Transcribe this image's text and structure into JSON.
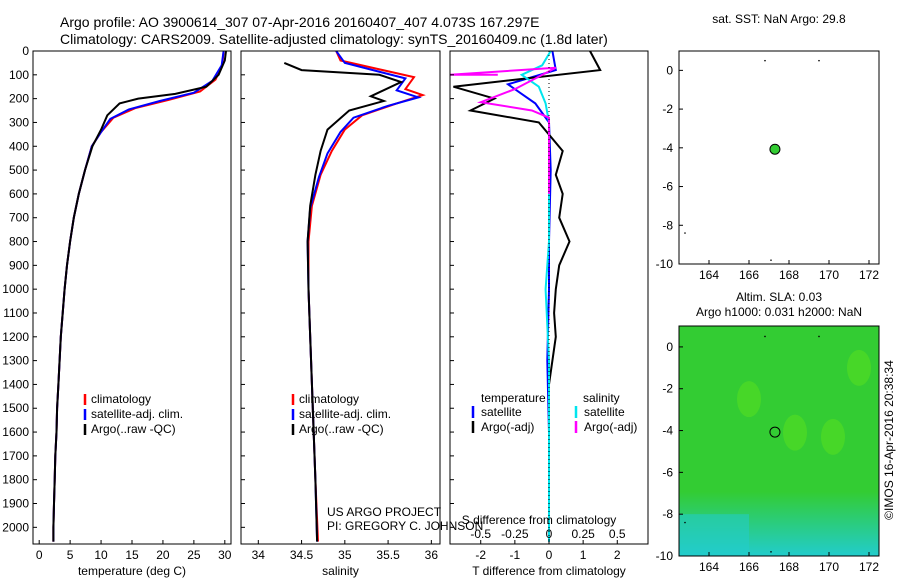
{
  "header": {
    "line1": "Argo profile: AO 3900614_307 07-Apr-2016 20160407_407 4.073S 167.297E",
    "line2": "Climatology: CARS2009. Satellite-adjusted climatology: synTS_20160409.nc (1.8d later)"
  },
  "colors": {
    "climatology": "#ff0000",
    "satellite": "#0000ff",
    "argo": "#000000",
    "salinity_satellite": "#00e5ee",
    "salinity_argo": "#ff00ff",
    "sla_map_green": "#33cc33",
    "sla_map_cyan": "#22cccc"
  },
  "chart_data": [
    {
      "type": "line",
      "panel": "temperature",
      "xlabel": "temperature (deg C)",
      "xlim": [
        -1,
        31
      ],
      "xticks": [
        0,
        5,
        10,
        15,
        20,
        25,
        30
      ],
      "ylim": [
        0,
        2070
      ],
      "yticks": [
        0,
        100,
        200,
        300,
        400,
        500,
        600,
        700,
        800,
        900,
        1000,
        1100,
        1200,
        1300,
        1400,
        1500,
        1600,
        1700,
        1800,
        1900,
        2000
      ],
      "y_reversed": true,
      "legend": [
        "climatology",
        "satellite-adj. clim.",
        "Argo(..raw -QC)"
      ],
      "series": [
        {
          "name": "climatology",
          "color": "#ff0000",
          "points": [
            [
              29.8,
              0
            ],
            [
              29.6,
              60
            ],
            [
              28.5,
              120
            ],
            [
              26,
              170
            ],
            [
              21,
              205
            ],
            [
              15.5,
              240
            ],
            [
              12,
              280
            ],
            [
              10,
              340
            ],
            [
              8.5,
              400
            ],
            [
              7.4,
              500
            ],
            [
              6.4,
              600
            ],
            [
              5.6,
              700
            ],
            [
              5,
              800
            ],
            [
              4.5,
              900
            ],
            [
              4.1,
              1000
            ],
            [
              3.8,
              1100
            ],
            [
              3.5,
              1200
            ],
            [
              3.3,
              1300
            ],
            [
              3.1,
              1400
            ],
            [
              2.9,
              1500
            ],
            [
              2.8,
              1600
            ],
            [
              2.6,
              1700
            ],
            [
              2.5,
              1800
            ],
            [
              2.4,
              1900
            ],
            [
              2.3,
              2000
            ],
            [
              2.3,
              2060
            ]
          ]
        },
        {
          "name": "satellite",
          "color": "#0000ff",
          "points": [
            [
              29.8,
              0
            ],
            [
              29.5,
              60
            ],
            [
              28,
              125
            ],
            [
              25,
              175
            ],
            [
              19.5,
              210
            ],
            [
              14.5,
              245
            ],
            [
              11.5,
              285
            ],
            [
              10,
              340
            ],
            [
              8.5,
              400
            ],
            [
              7.4,
              500
            ],
            [
              6.4,
              600
            ],
            [
              5.6,
              700
            ],
            [
              5,
              800
            ],
            [
              4.5,
              900
            ],
            [
              4.1,
              1000
            ],
            [
              3.8,
              1100
            ],
            [
              3.5,
              1200
            ],
            [
              3.3,
              1300
            ],
            [
              3.1,
              1400
            ],
            [
              2.9,
              1500
            ],
            [
              2.8,
              1600
            ],
            [
              2.6,
              1700
            ],
            [
              2.5,
              1800
            ],
            [
              2.4,
              1900
            ],
            [
              2.3,
              2000
            ],
            [
              2.3,
              2060
            ]
          ]
        },
        {
          "name": "Argo",
          "color": "#000000",
          "points": [
            [
              30.2,
              0
            ],
            [
              30,
              40
            ],
            [
              29,
              100
            ],
            [
              27,
              150
            ],
            [
              22,
              180
            ],
            [
              16,
              200
            ],
            [
              13,
              220
            ],
            [
              11,
              270
            ],
            [
              10,
              330
            ],
            [
              8.6,
              400
            ],
            [
              7.4,
              500
            ],
            [
              6.4,
              600
            ],
            [
              5.6,
              700
            ],
            [
              5,
              800
            ],
            [
              4.5,
              900
            ],
            [
              4.1,
              1000
            ],
            [
              3.8,
              1100
            ],
            [
              3.5,
              1200
            ],
            [
              3.3,
              1300
            ],
            [
              3.1,
              1400
            ],
            [
              2.9,
              1500
            ],
            [
              2.8,
              1600
            ],
            [
              2.6,
              1700
            ],
            [
              2.5,
              1800
            ],
            [
              2.4,
              1900
            ],
            [
              2.3,
              2000
            ],
            [
              2.3,
              2060
            ]
          ]
        }
      ]
    },
    {
      "type": "line",
      "panel": "salinity",
      "xlabel": "salinity",
      "xlim": [
        33.8,
        36.1
      ],
      "xticks": [
        34,
        34.5,
        35,
        35.5,
        36
      ],
      "ylim": [
        0,
        2070
      ],
      "y_reversed": true,
      "legend": [
        "climatology",
        "satellite-adj. clim.",
        "Argo(..raw -QC)"
      ],
      "annotation": [
        "US ARGO PROJECT",
        "PI: GREGORY C. JOHNSON"
      ],
      "series": [
        {
          "name": "climatology",
          "color": "#ff0000",
          "points": [
            [
              34.9,
              0
            ],
            [
              34.95,
              40
            ],
            [
              35.8,
              110
            ],
            [
              35.7,
              160
            ],
            [
              35.9,
              185
            ],
            [
              35.6,
              220
            ],
            [
              35.2,
              270
            ],
            [
              35,
              330
            ],
            [
              34.85,
              420
            ],
            [
              34.72,
              520
            ],
            [
              34.62,
              650
            ],
            [
              34.58,
              800
            ],
            [
              34.58,
              1000
            ],
            [
              34.6,
              1200
            ],
            [
              34.63,
              1500
            ],
            [
              34.66,
              1800
            ],
            [
              34.69,
              2060
            ]
          ]
        },
        {
          "name": "satellite",
          "color": "#0000ff",
          "points": [
            [
              34.9,
              0
            ],
            [
              35,
              50
            ],
            [
              35.7,
              115
            ],
            [
              35.6,
              165
            ],
            [
              35.85,
              195
            ],
            [
              35.5,
              230
            ],
            [
              35.1,
              280
            ],
            [
              34.95,
              340
            ],
            [
              34.8,
              430
            ],
            [
              34.7,
              530
            ],
            [
              34.6,
              660
            ],
            [
              34.57,
              800
            ],
            [
              34.58,
              1000
            ],
            [
              34.6,
              1200
            ],
            [
              34.63,
              1500
            ],
            [
              34.66,
              1800
            ],
            [
              34.68,
              2060
            ]
          ]
        },
        {
          "name": "Argo",
          "color": "#000000",
          "points": [
            [
              34.3,
              50
            ],
            [
              34.5,
              80
            ],
            [
              35.4,
              100
            ],
            [
              35.65,
              130
            ],
            [
              35.3,
              190
            ],
            [
              35.45,
              210
            ],
            [
              35.05,
              250
            ],
            [
              34.8,
              330
            ],
            [
              34.72,
              420
            ],
            [
              34.66,
              520
            ],
            [
              34.6,
              650
            ],
            [
              34.57,
              800
            ],
            [
              34.58,
              1000
            ],
            [
              34.6,
              1200
            ],
            [
              34.63,
              1500
            ],
            [
              34.66,
              1800
            ],
            [
              34.68,
              2060
            ]
          ]
        }
      ]
    },
    {
      "type": "line",
      "panel": "difference",
      "xlabel_top": "S difference from climatology",
      "xlabel": "T difference from climatology",
      "xlim": [
        -2.9,
        2.9
      ],
      "xticks": [
        -2,
        -1,
        0,
        1,
        2
      ],
      "s_ticks": [
        -0.5,
        -0.25,
        0,
        0.25,
        0.5
      ],
      "ylim": [
        0,
        2070
      ],
      "y_reversed": true,
      "legend": {
        "temperature_header": "temperature",
        "salinity_header": "salinity",
        "t_satellite": "satellite",
        "t_argo": "Argo(-adj)",
        "s_satellite": "satellite",
        "s_argo": "Argo(-adj)"
      },
      "series": [
        {
          "name": "T satellite",
          "color": "#0000ff",
          "points": [
            [
              0.1,
              0
            ],
            [
              0.2,
              80
            ],
            [
              -1.2,
              140
            ],
            [
              -0.8,
              180
            ],
            [
              -0.4,
              220
            ],
            [
              0,
              300
            ],
            [
              0.05,
              500
            ],
            [
              0,
              800
            ],
            [
              0,
              1000
            ],
            [
              -0.05,
              1300
            ],
            [
              0,
              1600
            ],
            [
              0,
              2060
            ]
          ]
        },
        {
          "name": "T Argo",
          "color": "#000000",
          "points": [
            [
              1.2,
              0
            ],
            [
              1.5,
              80
            ],
            [
              -2.8,
              150
            ],
            [
              -1.6,
              200
            ],
            [
              -2.3,
              250
            ],
            [
              -0.3,
              300
            ],
            [
              0.4,
              420
            ],
            [
              0.2,
              520
            ],
            [
              0.4,
              600
            ],
            [
              0.3,
              700
            ],
            [
              0.6,
              800
            ],
            [
              0.3,
              900
            ],
            [
              0.2,
              1000
            ],
            [
              0.15,
              1100
            ],
            [
              0.2,
              1200
            ],
            [
              0,
              1400
            ],
            [
              0,
              1600
            ],
            [
              0,
              2060
            ]
          ]
        },
        {
          "name": "S satellite",
          "color": "#00e5ee",
          "points": [
            [
              0.05,
              0
            ],
            [
              -0.2,
              60
            ],
            [
              -0.8,
              100
            ],
            [
              -0.3,
              150
            ],
            [
              -0.1,
              220
            ],
            [
              0,
              300
            ],
            [
              0,
              500
            ],
            [
              0,
              800
            ],
            [
              -0.1,
              1000
            ],
            [
              0,
              1300
            ],
            [
              0,
              1700
            ],
            [
              0,
              2060
            ]
          ]
        },
        {
          "name": "S Argo",
          "color": "#ff00ff",
          "points": [
            [
              -1.5,
              100
            ],
            [
              -2.9,
              100
            ],
            [
              0.2,
              70
            ],
            [
              -1,
              160
            ],
            [
              -2,
              215
            ],
            [
              -0.5,
              250
            ],
            [
              0,
              280
            ],
            [
              0,
              400
            ],
            [
              0,
              600
            ]
          ]
        }
      ]
    },
    {
      "type": "scatter",
      "panel": "sst_map",
      "title": "sat. SST: NaN Argo: 29.8",
      "xlim": [
        162.5,
        172.5
      ],
      "xticks": [
        164,
        166,
        168,
        170,
        172
      ],
      "ylim": [
        -10,
        1
      ],
      "yticks": [
        0,
        -2,
        -4,
        -6,
        -8,
        -10
      ],
      "points": [
        {
          "x": 167.297,
          "y": -4.073,
          "color": "#33cc33"
        }
      ]
    },
    {
      "type": "heatmap",
      "panel": "sla_map",
      "title": "Altim. SLA: 0.03",
      "subtitle": "Argo h1000: 0.031 h2000: NaN",
      "xlim": [
        162.5,
        172.5
      ],
      "xticks": [
        164,
        166,
        168,
        170,
        172
      ],
      "ylim": [
        -10,
        1
      ],
      "yticks": [
        0,
        -2,
        -4,
        -6,
        -8,
        -10
      ],
      "points": [
        {
          "x": 167.297,
          "y": -4.073
        }
      ]
    }
  ],
  "footer": {
    "vertical_stamp": "©IMOS 16-Apr-2016 20:38:34"
  }
}
